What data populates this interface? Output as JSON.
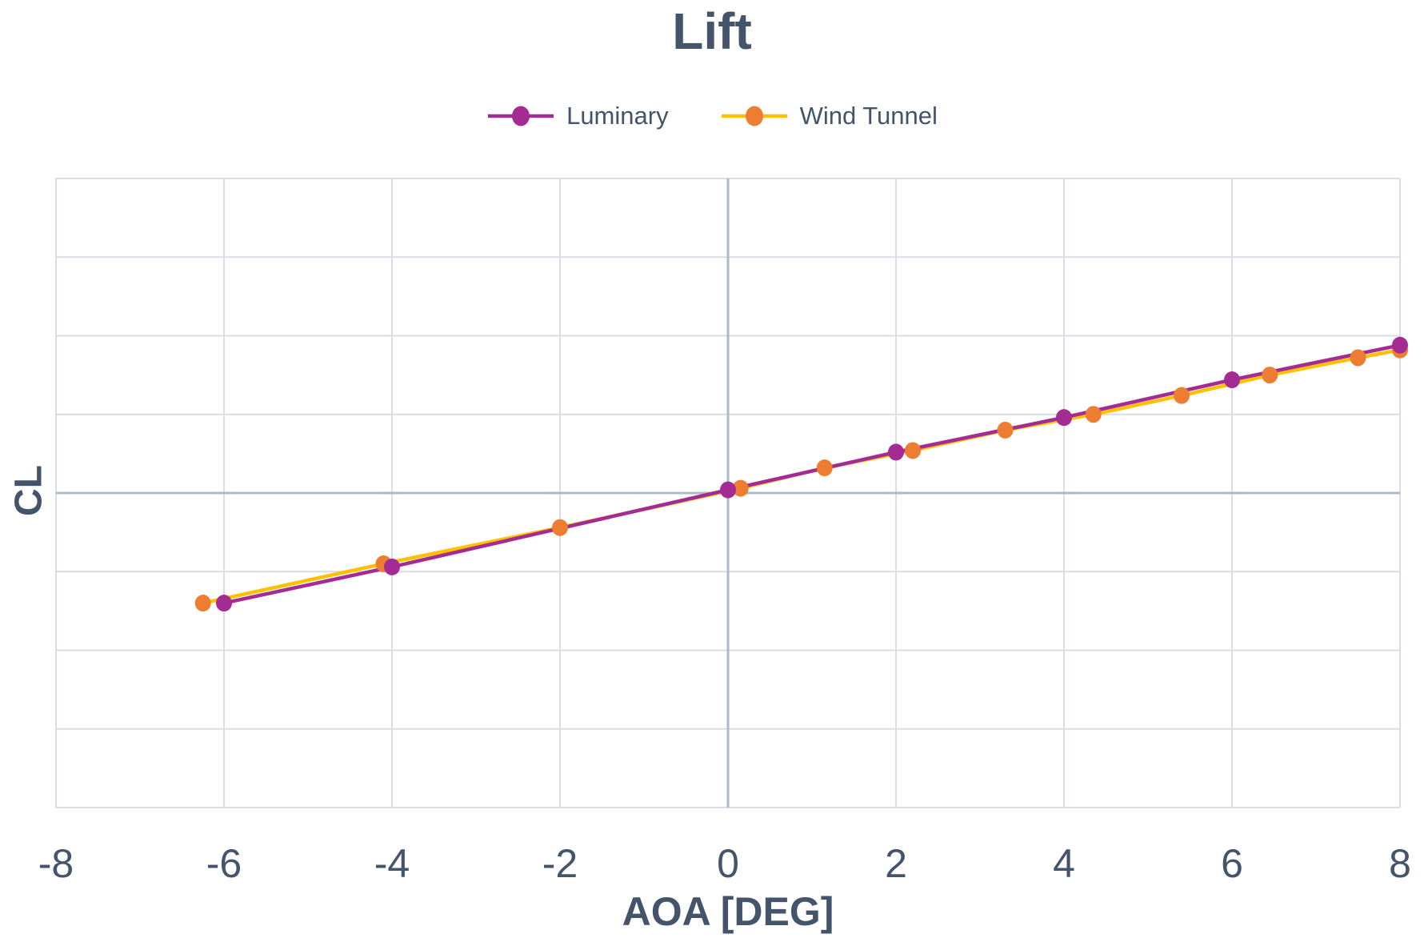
{
  "chart_data": {
    "type": "line",
    "title": "Lift",
    "xlabel": "AOA [DEG]",
    "ylabel": "CL",
    "xlim": [
      -8,
      8
    ],
    "ylim": [
      -1,
      1
    ],
    "x_ticks": [
      -8,
      -6,
      -4,
      -2,
      0,
      2,
      4,
      6,
      8
    ],
    "x_grid_step": 2,
    "y_grid_step": 0.25,
    "y_tick_labels_visible": false,
    "grid": true,
    "legend_position": "top-center",
    "series": [
      {
        "name": "Luminary",
        "line_color": "#A42B93",
        "marker_color": "#A42B93",
        "x": [
          -6.0,
          -4.0,
          0.0,
          2.0,
          4.0,
          6.0,
          8.0
        ],
        "y": [
          -0.35,
          -0.235,
          0.01,
          0.13,
          0.24,
          0.36,
          0.47
        ]
      },
      {
        "name": "Wind Tunnel",
        "line_color": "#FFC000",
        "marker_color": "#ED7D31",
        "x": [
          -6.25,
          -4.1,
          -2.0,
          0.15,
          1.15,
          2.2,
          3.3,
          4.35,
          5.4,
          6.45,
          7.5,
          8.0
        ],
        "y": [
          -0.35,
          -0.225,
          -0.11,
          0.015,
          0.08,
          0.135,
          0.2,
          0.25,
          0.31,
          0.375,
          0.43,
          0.455
        ]
      }
    ]
  },
  "colors": {
    "text": "#44546A",
    "background": "#FFFFFF",
    "gridline": "#D9DDE6",
    "gridline_zero": "#AEB8C8"
  }
}
